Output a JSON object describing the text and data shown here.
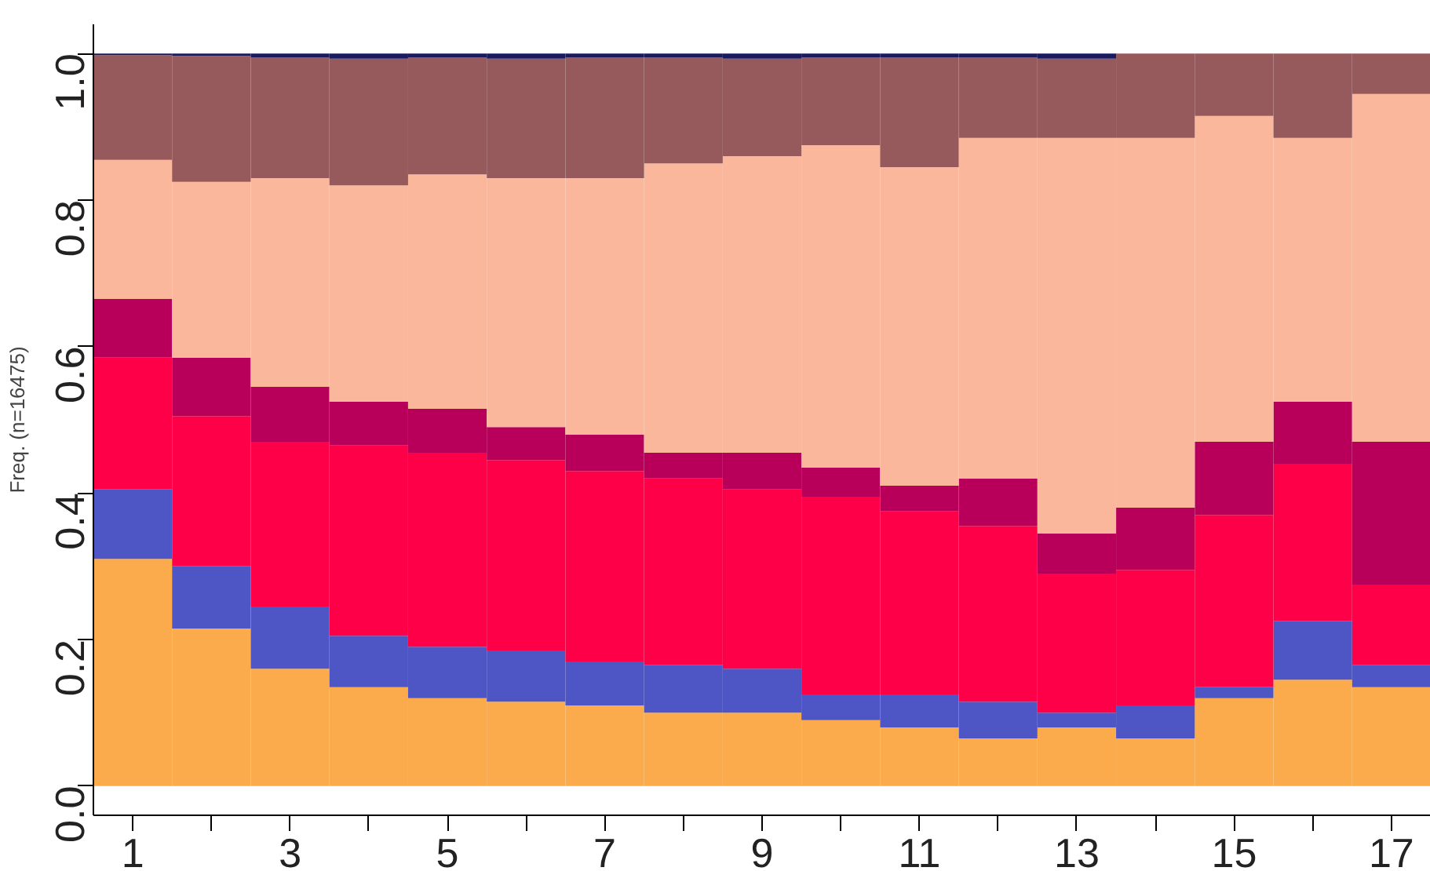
{
  "chart_data": {
    "type": "bar",
    "stacked": true,
    "ylabel": "Freq. (n=16475)",
    "x": [
      1,
      2,
      3,
      4,
      5,
      6,
      7,
      8,
      9,
      10,
      11,
      12,
      13,
      14,
      15,
      16,
      17
    ],
    "xlim": [
      0.5,
      17.5
    ],
    "xticks": [
      1,
      {
        "value": 2,
        "label": null
      },
      3,
      {
        "value": 4,
        "label": null
      },
      5,
      {
        "value": 6,
        "label": null
      },
      7,
      {
        "value": 8,
        "label": null
      },
      9,
      {
        "value": 10,
        "label": null
      },
      11,
      {
        "value": 12,
        "label": null
      },
      13,
      {
        "value": 14,
        "label": null
      },
      15,
      {
        "value": 16,
        "label": null
      },
      17
    ],
    "ylim": [
      -0.04,
      1.04
    ],
    "yticks": [
      {
        "value": 0,
        "label": "0.0"
      },
      0.2,
      0.4,
      0.6,
      0.8,
      {
        "value": 1,
        "label": "1.0"
      }
    ],
    "grid": false,
    "series": [
      {
        "color": "#fbab4b",
        "values": [
          0.31,
          0.215,
          0.16,
          0.135,
          0.12,
          0.115,
          0.11,
          0.1,
          0.1,
          0.09,
          0.08,
          0.065,
          0.08,
          0.065,
          0.12,
          0.145,
          0.135
        ]
      },
      {
        "color": "#4e55c4",
        "values": [
          0.095,
          0.085,
          0.085,
          0.07,
          0.07,
          0.07,
          0.06,
          0.065,
          0.06,
          0.035,
          0.045,
          0.05,
          0.02,
          0.045,
          0.015,
          0.08,
          0.03
        ]
      },
      {
        "color": "#fe0048",
        "values": [
          0.18,
          0.205,
          0.225,
          0.26,
          0.265,
          0.26,
          0.26,
          0.255,
          0.245,
          0.27,
          0.25,
          0.24,
          0.19,
          0.185,
          0.235,
          0.215,
          0.11
        ]
      },
      {
        "color": "#b8005a",
        "values": [
          0.08,
          0.08,
          0.075,
          0.06,
          0.06,
          0.045,
          0.05,
          0.035,
          0.05,
          0.04,
          0.035,
          0.065,
          0.055,
          0.085,
          0.1,
          0.085,
          0.195
        ]
      },
      {
        "color": "#fbb79b",
        "values": [
          0.19,
          0.24,
          0.285,
          0.295,
          0.32,
          0.34,
          0.35,
          0.395,
          0.405,
          0.44,
          0.435,
          0.465,
          0.54,
          0.505,
          0.445,
          0.36,
          0.475
        ]
      },
      {
        "color": "#965a5c",
        "values": [
          0.143,
          0.172,
          0.165,
          0.173,
          0.16,
          0.163,
          0.165,
          0.145,
          0.133,
          0.12,
          0.15,
          0.11,
          0.108,
          0.115,
          0.085,
          0.115,
          0.055
        ]
      },
      {
        "color": "#1a1a5e",
        "values": [
          0.002,
          0.003,
          0.005,
          0.007,
          0.005,
          0.007,
          0.005,
          0.005,
          0.007,
          0.005,
          0.005,
          0.005,
          0.007,
          0,
          0,
          0,
          0
        ]
      }
    ]
  }
}
